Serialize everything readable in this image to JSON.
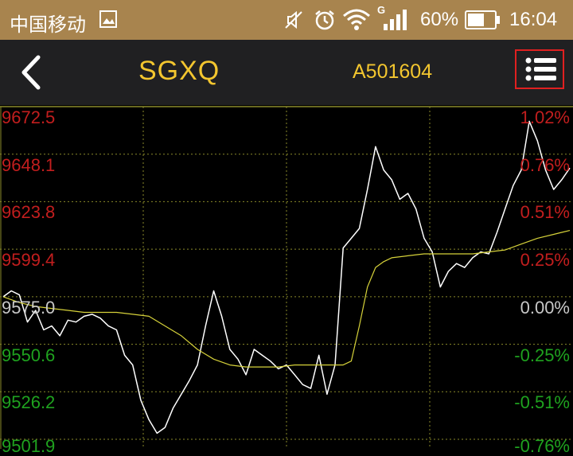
{
  "status_bar": {
    "carrier": "中国移动",
    "network_type": "G",
    "battery_percent": "60%",
    "time": "16:04",
    "icons": [
      "image-icon",
      "mute-icon",
      "alarm-icon",
      "wifi-icon",
      "signal-icon",
      "battery-icon"
    ]
  },
  "nav": {
    "title": "SGXQ",
    "code": "A501604",
    "back_icon": "chevron-left-icon",
    "menu_icon": "list-menu-icon"
  },
  "colors": {
    "up": "#c21e1e",
    "down": "#1fa21f",
    "neutral": "#c8c8c8",
    "price_line": "#ffffff",
    "avg_line": "#d6d23a",
    "title": "#f3c62f",
    "grid": "#8a8a2a"
  },
  "chart_data": {
    "type": "line",
    "title": "",
    "ylim": [
      9501.9,
      9672.5
    ],
    "base_price": 9575.0,
    "y_ticks_price": [
      "9672.5",
      "9648.1",
      "9623.8",
      "9599.4",
      "9575.0",
      "9550.6",
      "9526.2",
      "9501.9"
    ],
    "y_ticks_pct": [
      "1.02%",
      "0.76%",
      "0.51%",
      "0.25%",
      "0.00%",
      "-0.25%",
      "-0.51%",
      "-0.76%"
    ],
    "series": [
      {
        "values": [
          9575,
          9578,
          9576,
          9562,
          9568,
          9558,
          9560,
          9555,
          9563,
          9562,
          9565,
          9566,
          9564,
          9560,
          9558,
          9545,
          9540,
          9522,
          9512,
          9505,
          9508,
          9518,
          9525,
          9532,
          9540,
          9560,
          9578,
          9565,
          9548,
          9543,
          9535,
          9548,
          9545,
          9542,
          9538,
          9540,
          9535,
          9530,
          9528,
          9545,
          9525,
          9540,
          9600,
          9605,
          9610,
          9630,
          9652,
          9640,
          9635,
          9625,
          9628,
          9620,
          9605,
          9598,
          9580,
          9588,
          9592,
          9590,
          9595,
          9598,
          9597,
          9608,
          9620,
          9632,
          9640,
          9665,
          9655,
          9640,
          9630,
          9635,
          9641
        ],
        "x": [
          0,
          2,
          4,
          6,
          8,
          10,
          12,
          14,
          16,
          18,
          20,
          22,
          24,
          26,
          28,
          30,
          32,
          34,
          36,
          38,
          40,
          42,
          44,
          46,
          48,
          50,
          52,
          54,
          56,
          58,
          60,
          62,
          64,
          66,
          68,
          70,
          72,
          74,
          76,
          78,
          80,
          82,
          84,
          86,
          88,
          90,
          92,
          94,
          96,
          98,
          100,
          102,
          104,
          106,
          108,
          110,
          112,
          114,
          116,
          118,
          120,
          122,
          124,
          126,
          128,
          130,
          132,
          134,
          136,
          138,
          140
        ]
      },
      {
        "values": [
          9575,
          9572,
          9570,
          9569,
          9568,
          9567,
          9567,
          9567,
          9566,
          9565,
          9560,
          9555,
          9548,
          9543,
          9540,
          9539,
          9539,
          9539,
          9540,
          9540,
          9540,
          9540,
          9540,
          9542,
          9560,
          9580,
          9590,
          9593,
          9595,
          9596,
          9597,
          9597,
          9597,
          9597,
          9598,
          9599,
          9602,
          9605,
          9607,
          9608,
          9609
        ],
        "x": [
          0,
          4,
          8,
          12,
          16,
          20,
          24,
          28,
          32,
          36,
          40,
          44,
          48,
          52,
          56,
          60,
          64,
          68,
          72,
          76,
          80,
          82,
          84,
          86,
          88,
          90,
          92,
          94,
          96,
          100,
          104,
          108,
          112,
          116,
          120,
          124,
          128,
          132,
          136,
          138,
          140
        ]
      }
    ],
    "grid": true
  }
}
